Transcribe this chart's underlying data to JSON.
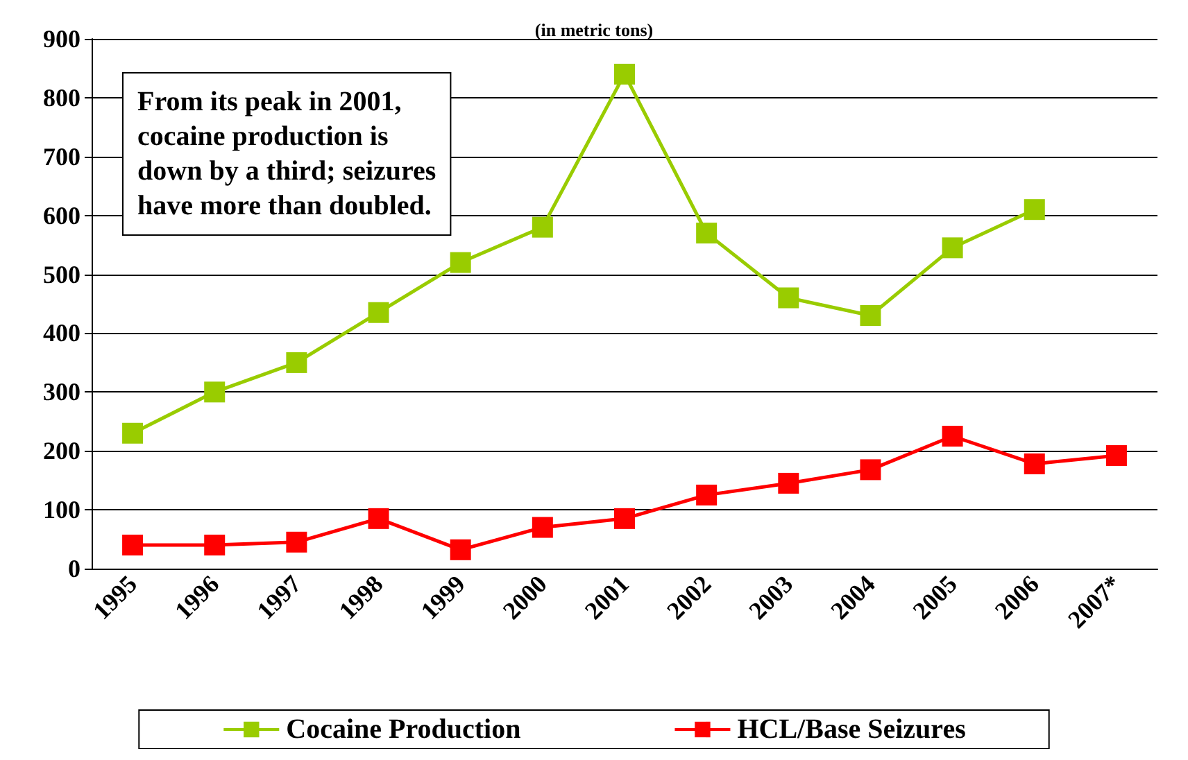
{
  "chart_data": {
    "type": "line",
    "subtitle": "(in metric tons)",
    "categories": [
      "1995",
      "1996",
      "1997",
      "1998",
      "1999",
      "2000",
      "2001",
      "2002",
      "2003",
      "2004",
      "2005",
      "2006",
      "2007*"
    ],
    "series": [
      {
        "name": "Cocaine Production",
        "color": "#99cc00",
        "values": [
          230,
          300,
          350,
          435,
          520,
          580,
          840,
          570,
          460,
          430,
          545,
          610,
          null
        ]
      },
      {
        "name": "HCL/Base Seizures",
        "color": "#ff0000",
        "values": [
          40,
          40,
          45,
          85,
          32,
          70,
          85,
          125,
          145,
          168,
          225,
          178,
          192
        ]
      }
    ],
    "ylim": [
      0,
      900
    ],
    "yticks": [
      0,
      100,
      200,
      300,
      400,
      500,
      600,
      700,
      800,
      900
    ],
    "grid": "y",
    "legend": "bottom",
    "marker": "square",
    "line_style": "solid",
    "annotations": [
      "From its peak in 2001,\ncocaine production is\ndown by a third; seizures\nhave more than doubled."
    ]
  }
}
